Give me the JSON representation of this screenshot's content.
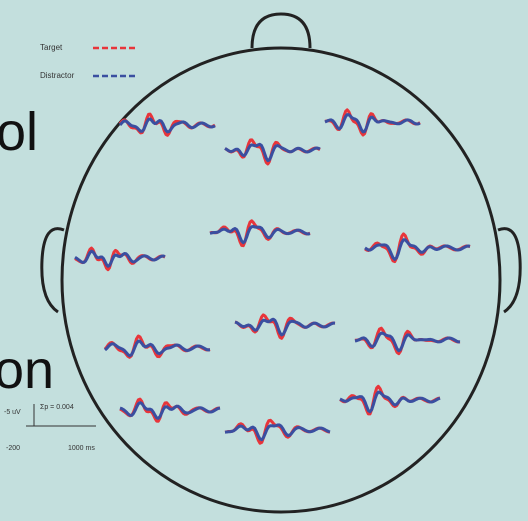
{
  "slide_text": [
    "ol",
    "on"
  ],
  "legend": {
    "target": "Target",
    "distractor": "Distractor"
  },
  "scale": {
    "amplitude": "-5 uV",
    "p_value": "Σp = 0.004",
    "start": "-200",
    "end": "1000 ms"
  }
}
